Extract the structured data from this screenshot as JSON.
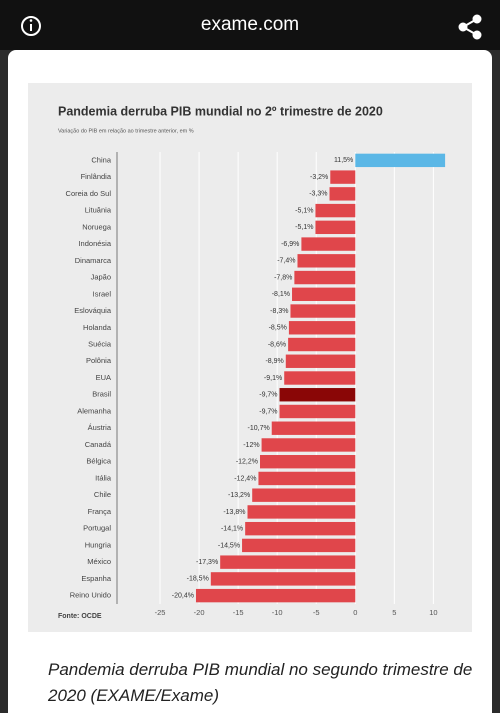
{
  "header": {
    "domain": "exame.com"
  },
  "chart_data": {
    "type": "bar",
    "title": "Pandemia derruba PIB mundial no 2º trimestre de 2020",
    "subtitle": "Variação do PIB em relação ao trimestre anterior, em %",
    "source": "Fonte: OCDE",
    "categories": [
      "China",
      "Finlândia",
      "Coreia do Sul",
      "Lituânia",
      "Noruega",
      "Indonésia",
      "Dinamarca",
      "Japão",
      "Israel",
      "Eslováquia",
      "Holanda",
      "Suécia",
      "Polônia",
      "EUA",
      "Brasil",
      "Alemanha",
      "Áustria",
      "Canadá",
      "Bélgica",
      "Itália",
      "Chile",
      "França",
      "Portugal",
      "Hungria",
      "México",
      "Espanha",
      "Reino Unido"
    ],
    "values": [
      11.5,
      -3.2,
      -3.3,
      -5.1,
      -5.1,
      -6.9,
      -7.4,
      -7.8,
      -8.1,
      -8.3,
      -8.5,
      -8.6,
      -8.9,
      -9.1,
      -9.7,
      -9.7,
      -10.7,
      -12,
      -12.2,
      -12.4,
      -13.2,
      -13.8,
      -14.1,
      -14.5,
      -17.3,
      -18.5,
      -20.4
    ],
    "value_labels": [
      "11,5%",
      "-3,2%",
      "-3,3%",
      "-5,1%",
      "-5,1%",
      "-6,9%",
      "-7,4%",
      "-7,8%",
      "-8,1%",
      "-8,3%",
      "-8,5%",
      "-8,6%",
      "-8,9%",
      "-9,1%",
      "-9,7%",
      "-9,7%",
      "-10,7%",
      "-12%",
      "-12,2%",
      "-12,4%",
      "-13,2%",
      "-13,8%",
      "-14,1%",
      "-14,5%",
      "-17,3%",
      "-18,5%",
      "-20,4%"
    ],
    "colors": [
      "#5bb7e6",
      "#e0464b",
      "#e0464b",
      "#e0464b",
      "#e0464b",
      "#e0464b",
      "#e0464b",
      "#e0464b",
      "#e0464b",
      "#e0464b",
      "#e0464b",
      "#e0464b",
      "#e0464b",
      "#e0464b",
      "#8a0606",
      "#e0464b",
      "#e0464b",
      "#e0464b",
      "#e0464b",
      "#e0464b",
      "#e0464b",
      "#e0464b",
      "#e0464b",
      "#e0464b",
      "#e0464b",
      "#e0464b",
      "#e0464b"
    ],
    "xlim": [
      -30,
      12
    ],
    "xticks": [
      -25,
      -20,
      -15,
      -10,
      -5,
      0,
      5,
      10
    ],
    "grid": true
  },
  "caption": "Pandemia derruba PIB mundial no segundo trimestre de 2020 (EXAME/Exame)"
}
